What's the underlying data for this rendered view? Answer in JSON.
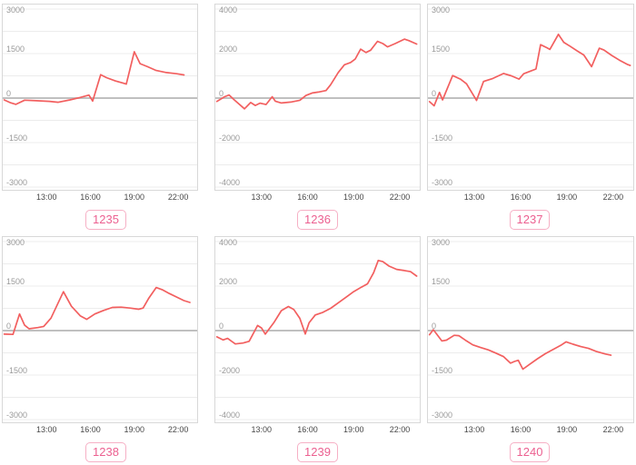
{
  "colors": {
    "line": "#f25f5f",
    "grid": "#ececec",
    "zero_line": "#c0c0c0",
    "panel_border": "#d8d8d8",
    "y_label": "#999999",
    "x_label": "#474747",
    "tag_text": "#ec6090",
    "tag_border": "#f6b0c5",
    "tag_bg": "#ffffff"
  },
  "chart_data": [
    {
      "id": "1235",
      "type": "line",
      "ylim": [
        -3000,
        3000
      ],
      "yticks": [
        3000,
        1500,
        0,
        -1500,
        -3000
      ],
      "xlim": [
        10.0,
        23.3
      ],
      "xticks": [
        "13:00",
        "16:00",
        "19:00",
        "22:00"
      ],
      "xtick_hours": [
        13,
        16,
        19,
        22
      ],
      "points": [
        [
          10.1,
          -60
        ],
        [
          10.5,
          -150
        ],
        [
          10.9,
          -210
        ],
        [
          11.5,
          -70
        ],
        [
          12.3,
          -90
        ],
        [
          13.2,
          -110
        ],
        [
          13.8,
          -140
        ],
        [
          14.6,
          -60
        ],
        [
          15.3,
          20
        ],
        [
          15.9,
          100
        ],
        [
          16.15,
          -100
        ],
        [
          16.7,
          790
        ],
        [
          17.1,
          690
        ],
        [
          17.7,
          580
        ],
        [
          18.2,
          510
        ],
        [
          18.45,
          470
        ],
        [
          19.0,
          1560
        ],
        [
          19.4,
          1160
        ],
        [
          19.9,
          1060
        ],
        [
          20.5,
          930
        ],
        [
          21.2,
          860
        ],
        [
          21.9,
          820
        ],
        [
          22.4,
          780
        ]
      ]
    },
    {
      "id": "1236",
      "type": "line",
      "ylim": [
        -4000,
        4000
      ],
      "yticks": [
        4000,
        2000,
        0,
        -2000,
        -4000
      ],
      "xlim": [
        10.0,
        23.3
      ],
      "xticks": [
        "13:00",
        "16:00",
        "19:00",
        "22:00"
      ],
      "xtick_hours": [
        13,
        16,
        19,
        22
      ],
      "points": [
        [
          10.1,
          -150
        ],
        [
          10.6,
          60
        ],
        [
          10.9,
          140
        ],
        [
          11.2,
          -60
        ],
        [
          11.9,
          -480
        ],
        [
          12.3,
          -200
        ],
        [
          12.6,
          -330
        ],
        [
          12.9,
          -230
        ],
        [
          13.3,
          -290
        ],
        [
          13.7,
          60
        ],
        [
          13.9,
          -140
        ],
        [
          14.3,
          -220
        ],
        [
          14.9,
          -180
        ],
        [
          15.5,
          -100
        ],
        [
          15.9,
          120
        ],
        [
          16.3,
          230
        ],
        [
          16.7,
          270
        ],
        [
          17.2,
          340
        ],
        [
          17.5,
          600
        ],
        [
          18.0,
          1150
        ],
        [
          18.4,
          1500
        ],
        [
          18.8,
          1600
        ],
        [
          19.1,
          1750
        ],
        [
          19.45,
          2200
        ],
        [
          19.8,
          2050
        ],
        [
          20.1,
          2150
        ],
        [
          20.55,
          2550
        ],
        [
          20.9,
          2450
        ],
        [
          21.2,
          2300
        ],
        [
          21.7,
          2450
        ],
        [
          22.3,
          2650
        ],
        [
          22.6,
          2580
        ],
        [
          23.1,
          2430
        ]
      ]
    },
    {
      "id": "1237",
      "type": "line",
      "ylim": [
        -3000,
        3000
      ],
      "yticks": [
        3000,
        1500,
        0,
        -1500,
        -3000
      ],
      "xlim": [
        10.0,
        23.3
      ],
      "xticks": [
        "13:00",
        "16:00",
        "19:00",
        "22:00"
      ],
      "xtick_hours": [
        13,
        16,
        19,
        22
      ],
      "points": [
        [
          10.1,
          -120
        ],
        [
          10.4,
          -260
        ],
        [
          10.75,
          190
        ],
        [
          10.95,
          -60
        ],
        [
          11.6,
          760
        ],
        [
          12.1,
          640
        ],
        [
          12.5,
          480
        ],
        [
          13.15,
          -80
        ],
        [
          13.6,
          560
        ],
        [
          14.2,
          660
        ],
        [
          14.9,
          830
        ],
        [
          15.4,
          750
        ],
        [
          15.9,
          640
        ],
        [
          16.2,
          820
        ],
        [
          16.6,
          900
        ],
        [
          17.0,
          980
        ],
        [
          17.3,
          1800
        ],
        [
          17.7,
          1700
        ],
        [
          17.9,
          1640
        ],
        [
          18.45,
          2150
        ],
        [
          18.8,
          1880
        ],
        [
          19.2,
          1750
        ],
        [
          19.7,
          1580
        ],
        [
          20.1,
          1450
        ],
        [
          20.6,
          1060
        ],
        [
          21.1,
          1680
        ],
        [
          21.4,
          1620
        ],
        [
          21.9,
          1440
        ],
        [
          22.4,
          1280
        ],
        [
          22.9,
          1140
        ],
        [
          23.1,
          1100
        ]
      ]
    },
    {
      "id": "1238",
      "type": "line",
      "ylim": [
        -3000,
        3000
      ],
      "yticks": [
        3000,
        1500,
        0,
        -1500,
        -3000
      ],
      "xlim": [
        10.0,
        23.3
      ],
      "xticks": [
        "13:00",
        "16:00",
        "19:00",
        "22:00"
      ],
      "xtick_hours": [
        13,
        16,
        19,
        22
      ],
      "points": [
        [
          10.1,
          -120
        ],
        [
          10.7,
          -130
        ],
        [
          11.15,
          560
        ],
        [
          11.5,
          180
        ],
        [
          11.8,
          60
        ],
        [
          12.4,
          100
        ],
        [
          12.8,
          140
        ],
        [
          13.3,
          420
        ],
        [
          14.15,
          1310
        ],
        [
          14.7,
          820
        ],
        [
          15.3,
          500
        ],
        [
          15.75,
          380
        ],
        [
          16.3,
          560
        ],
        [
          16.9,
          680
        ],
        [
          17.5,
          780
        ],
        [
          18.1,
          790
        ],
        [
          18.7,
          760
        ],
        [
          19.3,
          720
        ],
        [
          19.6,
          760
        ],
        [
          20.0,
          1100
        ],
        [
          20.5,
          1450
        ],
        [
          20.9,
          1380
        ],
        [
          21.4,
          1250
        ],
        [
          21.9,
          1130
        ],
        [
          22.4,
          1010
        ],
        [
          22.8,
          950
        ]
      ]
    },
    {
      "id": "1239",
      "type": "line",
      "ylim": [
        -4000,
        4000
      ],
      "yticks": [
        4000,
        2000,
        0,
        -2000,
        -4000
      ],
      "xlim": [
        10.0,
        23.3
      ],
      "xticks": [
        "13:00",
        "16:00",
        "19:00",
        "22:00"
      ],
      "xtick_hours": [
        13,
        16,
        19,
        22
      ],
      "points": [
        [
          10.1,
          -280
        ],
        [
          10.5,
          -420
        ],
        [
          10.8,
          -350
        ],
        [
          11.3,
          -600
        ],
        [
          11.8,
          -560
        ],
        [
          12.2,
          -480
        ],
        [
          12.75,
          230
        ],
        [
          13.0,
          120
        ],
        [
          13.25,
          -160
        ],
        [
          13.8,
          350
        ],
        [
          14.3,
          900
        ],
        [
          14.75,
          1080
        ],
        [
          15.1,
          950
        ],
        [
          15.5,
          550
        ],
        [
          15.85,
          -150
        ],
        [
          16.1,
          350
        ],
        [
          16.5,
          700
        ],
        [
          17.0,
          820
        ],
        [
          17.5,
          1000
        ],
        [
          18.0,
          1250
        ],
        [
          18.5,
          1500
        ],
        [
          19.0,
          1750
        ],
        [
          19.5,
          1950
        ],
        [
          19.9,
          2100
        ],
        [
          20.3,
          2600
        ],
        [
          20.6,
          3150
        ],
        [
          20.9,
          3100
        ],
        [
          21.3,
          2900
        ],
        [
          21.8,
          2750
        ],
        [
          22.3,
          2700
        ],
        [
          22.7,
          2650
        ],
        [
          23.1,
          2450
        ]
      ]
    },
    {
      "id": "1240",
      "type": "line",
      "ylim": [
        -3000,
        3000
      ],
      "yticks": [
        3000,
        1500,
        0,
        -1500,
        -3000
      ],
      "xlim": [
        10.0,
        23.3
      ],
      "xticks": [
        "13:00",
        "16:00",
        "19:00",
        "22:00"
      ],
      "xtick_hours": [
        13,
        16,
        19,
        22
      ],
      "points": [
        [
          10.1,
          -140
        ],
        [
          10.35,
          30
        ],
        [
          10.6,
          -140
        ],
        [
          10.9,
          -350
        ],
        [
          11.2,
          -320
        ],
        [
          11.7,
          -160
        ],
        [
          12.0,
          -170
        ],
        [
          12.5,
          -350
        ],
        [
          12.9,
          -480
        ],
        [
          13.4,
          -570
        ],
        [
          13.9,
          -650
        ],
        [
          14.4,
          -760
        ],
        [
          14.9,
          -880
        ],
        [
          15.35,
          -1100
        ],
        [
          15.6,
          -1040
        ],
        [
          15.85,
          -1000
        ],
        [
          16.15,
          -1300
        ],
        [
          16.6,
          -1130
        ],
        [
          17.1,
          -950
        ],
        [
          17.6,
          -780
        ],
        [
          18.1,
          -640
        ],
        [
          18.6,
          -500
        ],
        [
          18.95,
          -380
        ],
        [
          19.4,
          -460
        ],
        [
          19.9,
          -540
        ],
        [
          20.4,
          -600
        ],
        [
          20.9,
          -700
        ],
        [
          21.5,
          -790
        ],
        [
          21.85,
          -830
        ]
      ]
    }
  ]
}
